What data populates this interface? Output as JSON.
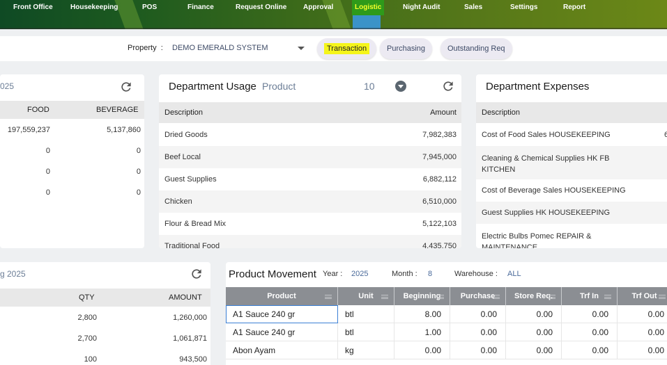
{
  "nav": {
    "items": [
      {
        "label": "Front Office",
        "active": false
      },
      {
        "label": "Housekeeping",
        "active": false
      },
      {
        "label": "POS",
        "active": false
      },
      {
        "label": "Finance",
        "active": false
      },
      {
        "label": "Request Online",
        "active": false
      },
      {
        "label": "Approval",
        "active": false
      },
      {
        "label": "Logistic",
        "active": true
      },
      {
        "label": "Night Audit",
        "active": false
      },
      {
        "label": "Sales",
        "active": false
      },
      {
        "label": "Settings",
        "active": false
      },
      {
        "label": "Report",
        "active": false
      }
    ]
  },
  "property": {
    "label": "Property",
    "separator": ":",
    "value": "DEMO EMERALD SYSTEM",
    "tabs": [
      "Transaction",
      "Purchasing",
      "Outstanding Req"
    ],
    "highlighted_tab": "Transaction"
  },
  "left_top_card": {
    "title_fragment": "025",
    "columns": [
      "FOOD",
      "BEVERAGE"
    ],
    "rows": [
      [
        "197,559,237",
        "5,137,860"
      ],
      [
        "0",
        "0"
      ],
      [
        "0",
        "0"
      ],
      [
        "0",
        "0"
      ]
    ]
  },
  "department_usage": {
    "title": "Department Usage",
    "filter": "Product",
    "count": "10",
    "columns": [
      "Description",
      "Amount"
    ],
    "rows": [
      [
        "Dried Goods",
        "7,982,383"
      ],
      [
        "Beef Local",
        "7,945,000"
      ],
      [
        "Guest Supplies",
        "6,882,112"
      ],
      [
        "Chicken",
        "6,510,000"
      ],
      [
        "Flour & Bread Mix",
        "5,122,103"
      ],
      [
        "Traditional Food",
        "4,435,750"
      ]
    ]
  },
  "department_expenses": {
    "title": "Department Expenses",
    "columns": [
      "Description"
    ],
    "rows": [
      [
        "Cost of Food Sales HOUSEKEEPING",
        "6"
      ],
      [
        "Cleaning & Chemical Supplies HK FB KITCHEN",
        ""
      ],
      [
        "Cost of Beverage Sales HOUSEKEEPING",
        ""
      ],
      [
        "Guest Supplies HK HOUSEKEEPING",
        ""
      ],
      [
        "Electric Bulbs Pomec REPAIR & MAINTENANCE",
        ""
      ]
    ]
  },
  "left_bottom_card": {
    "title_fragment": "g 2025",
    "columns": [
      "QTY",
      "AMOUNT"
    ],
    "rows": [
      [
        "2,800",
        "1,260,000"
      ],
      [
        "2,700",
        "1,061,871"
      ],
      [
        "100",
        "943,500"
      ]
    ]
  },
  "product_movement": {
    "title": "Product Movement",
    "year_label": "Year :",
    "year": "2025",
    "month_label": "Month :",
    "month": "8",
    "warehouse_label": "Warehouse :",
    "warehouse": "ALL",
    "columns": [
      "Product",
      "Unit",
      "Beginning",
      "Purchase",
      "Store Req.",
      "Trf In",
      "Trf Out"
    ],
    "rows": [
      [
        "A1 Sauce 240 gr",
        "btl",
        "8.00",
        "0.00",
        "0.00",
        "0.00",
        "0.00"
      ],
      [
        "A1 Sauce 240 gr",
        "btl",
        "1.00",
        "0.00",
        "0.00",
        "0.00",
        "0.00"
      ],
      [
        "Abon Ayam",
        "kg",
        "0.00",
        "0.00",
        "0.00",
        "0.00",
        "0.00"
      ]
    ]
  },
  "colors": {
    "nav_active_bg": "#2e9a1a",
    "nav_active_text": "#f4ff2a",
    "highlight": "#f5f51a",
    "grid_header": "#8b8e93"
  }
}
